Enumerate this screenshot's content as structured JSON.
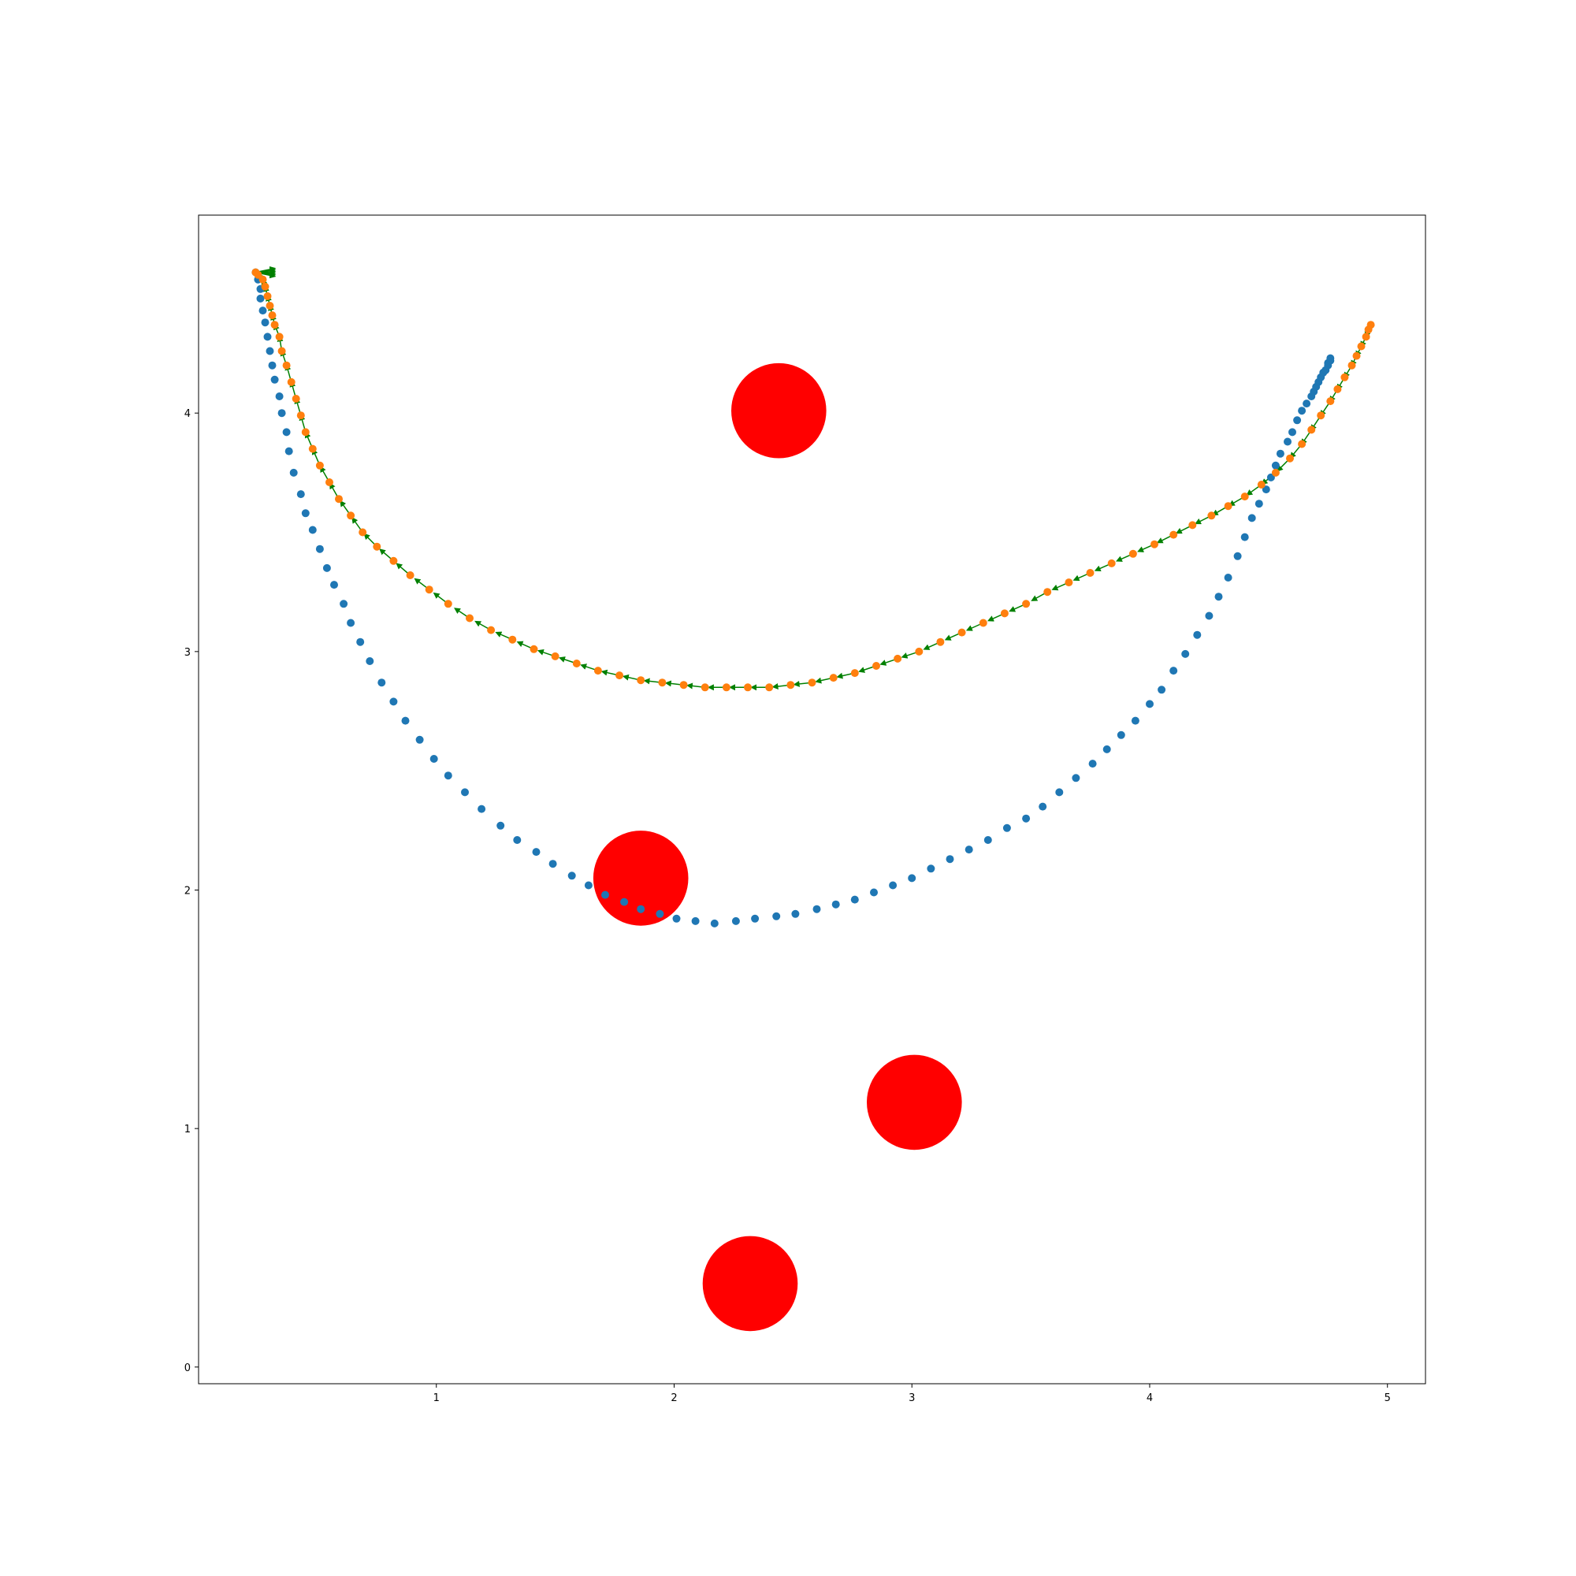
{
  "chart_data": {
    "type": "scatter",
    "title": "",
    "xlabel": "",
    "ylabel": "",
    "xlim": [
      0.0,
      5.16
    ],
    "ylim": [
      -0.07,
      4.83
    ],
    "grid": false,
    "legend": "none",
    "x_ticks": [
      "1",
      "2",
      "3",
      "4",
      "5"
    ],
    "y_ticks": [
      "0",
      "1",
      "2",
      "3",
      "4"
    ],
    "obstacles": {
      "color": "#ff0000",
      "radius": 0.2,
      "centers": [
        [
          2.44,
          4.01
        ],
        [
          1.86,
          2.05
        ],
        [
          3.01,
          1.11
        ],
        [
          2.32,
          0.35
        ]
      ]
    },
    "series": [
      {
        "color": "#1f77b4",
        "points": [
          [
            0.24,
            4.59
          ],
          [
            0.25,
            4.56
          ],
          [
            0.26,
            4.52
          ],
          [
            0.26,
            4.48
          ],
          [
            0.27,
            4.43
          ],
          [
            0.28,
            4.38
          ],
          [
            0.29,
            4.32
          ],
          [
            0.3,
            4.26
          ],
          [
            0.31,
            4.2
          ],
          [
            0.32,
            4.14
          ],
          [
            0.34,
            4.07
          ],
          [
            0.35,
            4.0
          ],
          [
            0.37,
            3.92
          ],
          [
            0.38,
            3.84
          ],
          [
            0.4,
            3.75
          ],
          [
            0.43,
            3.66
          ],
          [
            0.45,
            3.58
          ],
          [
            0.48,
            3.51
          ],
          [
            0.51,
            3.43
          ],
          [
            0.54,
            3.35
          ],
          [
            0.57,
            3.28
          ],
          [
            0.61,
            3.2
          ],
          [
            0.64,
            3.12
          ],
          [
            0.68,
            3.04
          ],
          [
            0.72,
            2.96
          ],
          [
            0.77,
            2.87
          ],
          [
            0.82,
            2.79
          ],
          [
            0.87,
            2.71
          ],
          [
            0.93,
            2.63
          ],
          [
            0.99,
            2.55
          ],
          [
            1.05,
            2.48
          ],
          [
            1.12,
            2.41
          ],
          [
            1.19,
            2.34
          ],
          [
            1.27,
            2.27
          ],
          [
            1.34,
            2.21
          ],
          [
            1.42,
            2.16
          ],
          [
            1.49,
            2.11
          ],
          [
            1.57,
            2.06
          ],
          [
            1.64,
            2.02
          ],
          [
            1.71,
            1.98
          ],
          [
            1.79,
            1.95
          ],
          [
            1.86,
            1.92
          ],
          [
            1.94,
            1.9
          ],
          [
            2.01,
            1.88
          ],
          [
            2.09,
            1.87
          ],
          [
            2.17,
            1.86
          ],
          [
            2.26,
            1.87
          ],
          [
            2.34,
            1.88
          ],
          [
            2.43,
            1.89
          ],
          [
            2.51,
            1.9
          ],
          [
            2.6,
            1.92
          ],
          [
            2.68,
            1.94
          ],
          [
            2.76,
            1.96
          ],
          [
            2.84,
            1.99
          ],
          [
            2.92,
            2.02
          ],
          [
            3.0,
            2.05
          ],
          [
            3.08,
            2.09
          ],
          [
            3.16,
            2.13
          ],
          [
            3.24,
            2.17
          ],
          [
            3.32,
            2.21
          ],
          [
            3.4,
            2.26
          ],
          [
            3.48,
            2.3
          ],
          [
            3.55,
            2.35
          ],
          [
            3.62,
            2.41
          ],
          [
            3.69,
            2.47
          ],
          [
            3.76,
            2.53
          ],
          [
            3.82,
            2.59
          ],
          [
            3.88,
            2.65
          ],
          [
            3.94,
            2.71
          ],
          [
            4.0,
            2.78
          ],
          [
            4.05,
            2.84
          ],
          [
            4.1,
            2.92
          ],
          [
            4.15,
            2.99
          ],
          [
            4.2,
            3.07
          ],
          [
            4.25,
            3.15
          ],
          [
            4.29,
            3.23
          ],
          [
            4.33,
            3.31
          ],
          [
            4.37,
            3.4
          ],
          [
            4.4,
            3.48
          ],
          [
            4.43,
            3.56
          ],
          [
            4.46,
            3.62
          ],
          [
            4.49,
            3.68
          ],
          [
            4.51,
            3.73
          ],
          [
            4.53,
            3.78
          ],
          [
            4.55,
            3.83
          ],
          [
            4.58,
            3.88
          ],
          [
            4.6,
            3.92
          ],
          [
            4.62,
            3.97
          ],
          [
            4.64,
            4.01
          ],
          [
            4.66,
            4.04
          ],
          [
            4.68,
            4.07
          ],
          [
            4.69,
            4.09
          ],
          [
            4.7,
            4.11
          ],
          [
            4.71,
            4.13
          ],
          [
            4.72,
            4.15
          ],
          [
            4.73,
            4.17
          ],
          [
            4.74,
            4.18
          ],
          [
            4.75,
            4.2
          ],
          [
            4.75,
            4.21
          ],
          [
            4.76,
            4.22
          ],
          [
            4.76,
            4.23
          ]
        ]
      },
      {
        "color": "#ff7f0e",
        "points": [
          [
            0.24,
            4.59
          ],
          [
            0.25,
            4.58
          ],
          [
            0.27,
            4.56
          ],
          [
            0.28,
            4.53
          ],
          [
            0.29,
            4.49
          ],
          [
            0.3,
            4.45
          ],
          [
            0.31,
            4.41
          ],
          [
            0.32,
            4.37
          ],
          [
            0.34,
            4.32
          ],
          [
            0.35,
            4.26
          ],
          [
            0.37,
            4.2
          ],
          [
            0.39,
            4.13
          ],
          [
            0.41,
            4.06
          ],
          [
            0.43,
            3.99
          ],
          [
            0.45,
            3.92
          ],
          [
            0.48,
            3.85
          ],
          [
            0.51,
            3.78
          ],
          [
            0.55,
            3.71
          ],
          [
            0.59,
            3.64
          ],
          [
            0.64,
            3.57
          ],
          [
            0.69,
            3.5
          ],
          [
            0.75,
            3.44
          ],
          [
            0.82,
            3.38
          ],
          [
            0.89,
            3.32
          ],
          [
            0.97,
            3.26
          ],
          [
            1.05,
            3.2
          ],
          [
            1.14,
            3.14
          ],
          [
            1.23,
            3.09
          ],
          [
            1.32,
            3.05
          ],
          [
            1.41,
            3.01
          ],
          [
            1.5,
            2.98
          ],
          [
            1.59,
            2.95
          ],
          [
            1.68,
            2.92
          ],
          [
            1.77,
            2.9
          ],
          [
            1.86,
            2.88
          ],
          [
            1.95,
            2.87
          ],
          [
            2.04,
            2.86
          ],
          [
            2.13,
            2.85
          ],
          [
            2.22,
            2.85
          ],
          [
            2.31,
            2.85
          ],
          [
            2.4,
            2.85
          ],
          [
            2.49,
            2.86
          ],
          [
            2.58,
            2.87
          ],
          [
            2.67,
            2.89
          ],
          [
            2.76,
            2.91
          ],
          [
            2.85,
            2.94
          ],
          [
            2.94,
            2.97
          ],
          [
            3.03,
            3.0
          ],
          [
            3.12,
            3.04
          ],
          [
            3.21,
            3.08
          ],
          [
            3.3,
            3.12
          ],
          [
            3.39,
            3.16
          ],
          [
            3.48,
            3.2
          ],
          [
            3.57,
            3.25
          ],
          [
            3.66,
            3.29
          ],
          [
            3.75,
            3.33
          ],
          [
            3.84,
            3.37
          ],
          [
            3.93,
            3.41
          ],
          [
            4.02,
            3.45
          ],
          [
            4.1,
            3.49
          ],
          [
            4.18,
            3.53
          ],
          [
            4.26,
            3.57
          ],
          [
            4.33,
            3.61
          ],
          [
            4.4,
            3.65
          ],
          [
            4.47,
            3.7
          ],
          [
            4.53,
            3.75
          ],
          [
            4.59,
            3.81
          ],
          [
            4.64,
            3.87
          ],
          [
            4.68,
            3.93
          ],
          [
            4.72,
            3.99
          ],
          [
            4.76,
            4.05
          ],
          [
            4.79,
            4.1
          ],
          [
            4.82,
            4.15
          ],
          [
            4.85,
            4.2
          ],
          [
            4.87,
            4.24
          ],
          [
            4.89,
            4.28
          ],
          [
            4.91,
            4.32
          ],
          [
            4.92,
            4.35
          ],
          [
            4.93,
            4.37
          ]
        ]
      }
    ],
    "arrows": {
      "color": "#008000",
      "attached_to_series": 1
    }
  }
}
